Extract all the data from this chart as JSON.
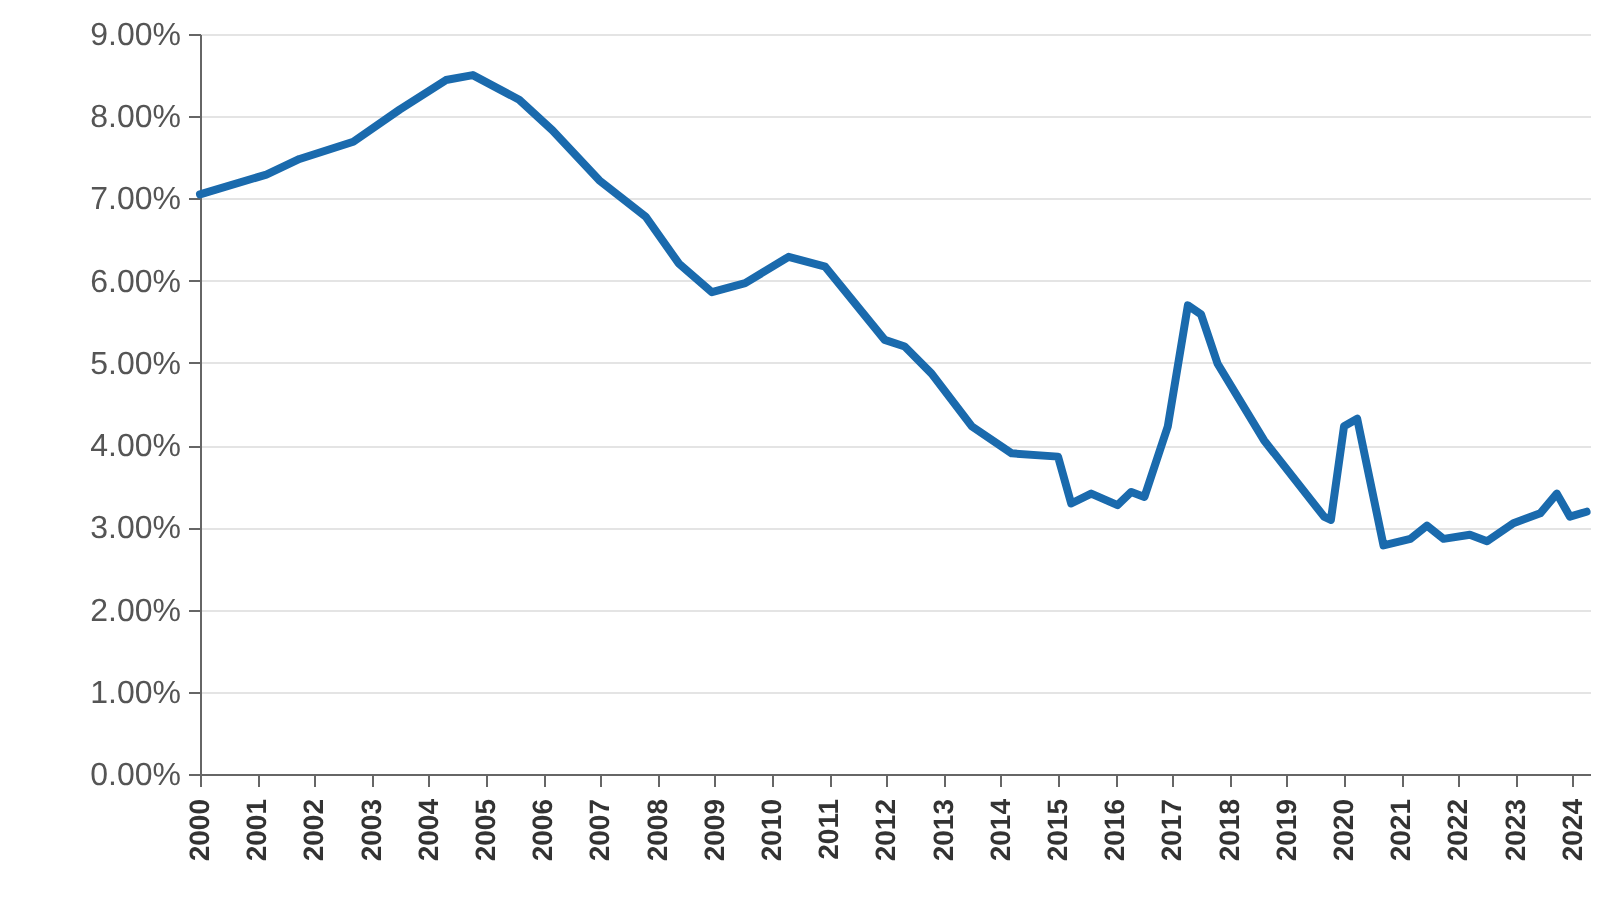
{
  "chart_data": {
    "type": "line",
    "x": [
      2000.0,
      2001.16,
      2001.74,
      2002.68,
      2003.49,
      2004.3,
      2004.77,
      2005.58,
      2006.16,
      2006.98,
      2007.79,
      2008.37,
      2008.95,
      2009.53,
      2010.29,
      2010.93,
      2011.97,
      2012.32,
      2012.79,
      2013.49,
      2014.19,
      2015.0,
      2015.23,
      2015.58,
      2016.04,
      2016.28,
      2016.51,
      2016.92,
      2017.27,
      2017.5,
      2017.79,
      2018.6,
      2019.65,
      2019.77,
      2020.0,
      2020.23,
      2020.69,
      2021.16,
      2021.45,
      2021.74,
      2022.2,
      2022.5,
      2022.96,
      2023.43,
      2023.72,
      2023.95,
      2024.24
    ],
    "series": [
      {
        "color": "#1a6aad",
        "values": [
          7.05,
          7.29,
          7.48,
          7.69,
          8.08,
          8.44,
          8.5,
          8.2,
          7.83,
          7.22,
          6.78,
          6.21,
          5.86,
          5.97,
          6.29,
          6.17,
          5.28,
          5.2,
          4.87,
          4.23,
          3.9,
          3.86,
          3.29,
          3.41,
          3.27,
          3.43,
          3.37,
          4.23,
          5.7,
          5.59,
          4.99,
          4.06,
          3.13,
          3.09,
          4.23,
          4.32,
          2.78,
          2.86,
          3.02,
          2.86,
          2.91,
          2.83,
          3.05,
          3.17,
          3.41,
          3.13,
          3.19
        ]
      }
    ],
    "xlim": [
      2000,
      2024.3
    ],
    "xticks": [
      2000,
      2001,
      2002,
      2003,
      2004,
      2005,
      2006,
      2007,
      2008,
      2009,
      2010,
      2011,
      2012,
      2013,
      2014,
      2015,
      2016,
      2017,
      2018,
      2019,
      2020,
      2021,
      2022,
      2023,
      2024
    ],
    "ylim": [
      0,
      9
    ],
    "yticks": [
      {
        "value": 0,
        "label": "0.00%"
      },
      {
        "value": 1,
        "label": "1.00%"
      },
      {
        "value": 2,
        "label": "2.00%"
      },
      {
        "value": 3,
        "label": "3.00%"
      },
      {
        "value": 4,
        "label": "4.00%"
      },
      {
        "value": 5,
        "label": "5.00%"
      },
      {
        "value": 6,
        "label": "6.00%"
      },
      {
        "value": 7,
        "label": "7.00%"
      },
      {
        "value": 8,
        "label": "8.00%"
      },
      {
        "value": 9,
        "label": "9.00%"
      }
    ],
    "grid": "y",
    "marker": "none",
    "line_style": "solid"
  }
}
